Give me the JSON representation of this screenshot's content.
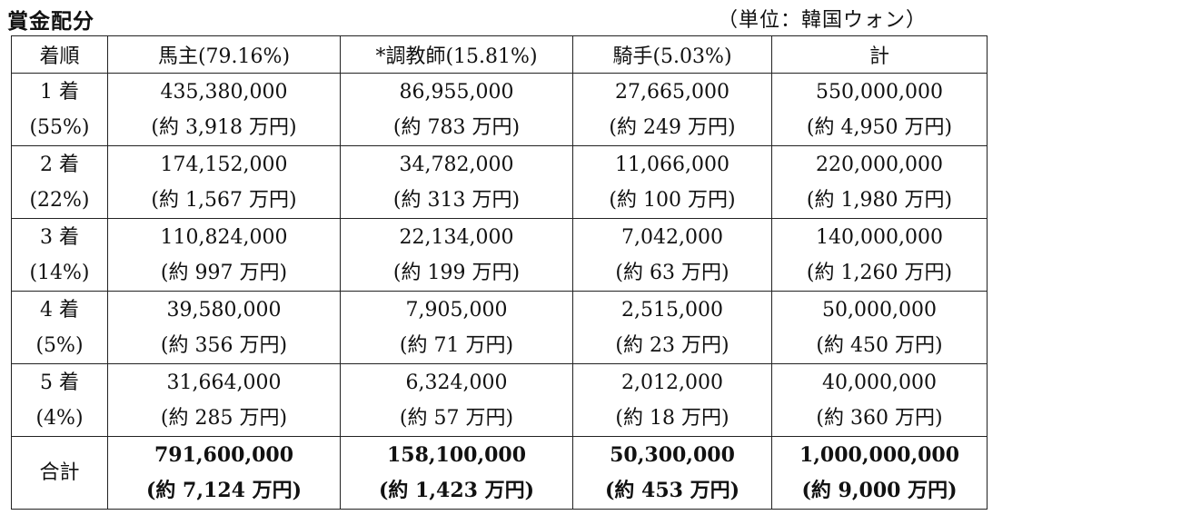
{
  "title": "賞金配分",
  "unit": "（単位：韓国ウォン）",
  "headers": [
    "着順",
    "馬主(79.16%)",
    "*調教師(15.81%)",
    "騎手(5.03%)",
    "計"
  ],
  "rows": [
    {
      "rank": "1 着",
      "share": "(55%)",
      "cells": [
        {
          "value": "435,380,000",
          "approx": "(約 3,918 万円)"
        },
        {
          "value": "86,955,000",
          "approx": "(約 783 万円)"
        },
        {
          "value": "27,665,000",
          "approx": "(約 249 万円)"
        },
        {
          "value": "550,000,000",
          "approx": "(約 4,950 万円)"
        }
      ]
    },
    {
      "rank": "2 着",
      "share": "(22%)",
      "cells": [
        {
          "value": "174,152,000",
          "approx": "(約 1,567 万円)"
        },
        {
          "value": "34,782,000",
          "approx": "(約 313 万円)"
        },
        {
          "value": "11,066,000",
          "approx": "(約 100 万円)"
        },
        {
          "value": "220,000,000",
          "approx": "(約 1,980 万円)"
        }
      ]
    },
    {
      "rank": "3 着",
      "share": "(14%)",
      "cells": [
        {
          "value": "110,824,000",
          "approx": "(約 997 万円)"
        },
        {
          "value": "22,134,000",
          "approx": "(約 199 万円)"
        },
        {
          "value": "7,042,000",
          "approx": "(約 63 万円)"
        },
        {
          "value": "140,000,000",
          "approx": "(約 1,260 万円)"
        }
      ]
    },
    {
      "rank": "4 着",
      "share": "(5%)",
      "cells": [
        {
          "value": "39,580,000",
          "approx": "(約 356 万円)"
        },
        {
          "value": "7,905,000",
          "approx": "(約 71 万円)"
        },
        {
          "value": "2,515,000",
          "approx": "(約 23 万円)"
        },
        {
          "value": "50,000,000",
          "approx": "(約 450 万円)"
        }
      ]
    },
    {
      "rank": "5 着",
      "share": "(4%)",
      "cells": [
        {
          "value": "31,664,000",
          "approx": "(約 285 万円)"
        },
        {
          "value": "6,324,000",
          "approx": "(約 57 万円)"
        },
        {
          "value": "2,012,000",
          "approx": "(約 18 万円)"
        },
        {
          "value": "40,000,000",
          "approx": "(約 360 万円)"
        }
      ]
    }
  ],
  "total": {
    "label": "合計",
    "cells": [
      {
        "value": "791,600,000",
        "approx": "(約 7,124 万円)"
      },
      {
        "value": "158,100,000",
        "approx": "(約 1,423 万円)"
      },
      {
        "value": "50,300,000",
        "approx": "(約 453 万円)"
      },
      {
        "value": "1,000,000,000",
        "approx": "(約 9,000 万円)"
      }
    ]
  }
}
